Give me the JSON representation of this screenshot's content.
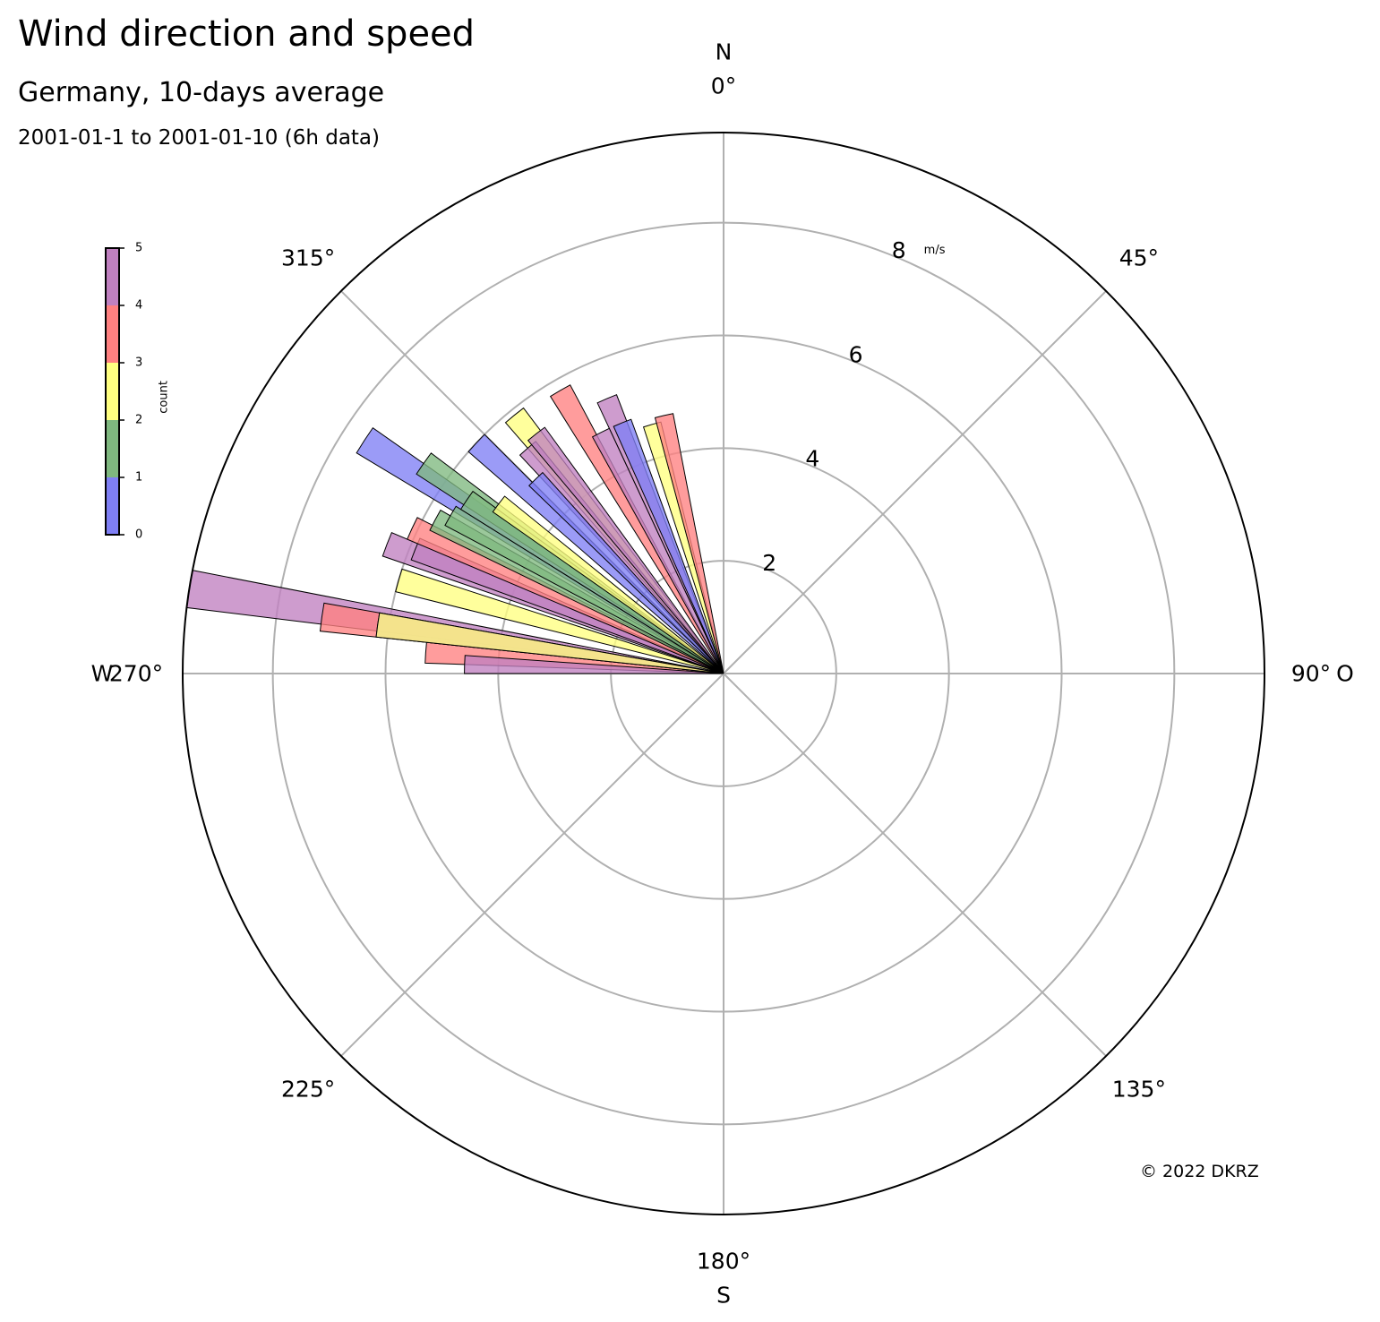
{
  "title": "Wind direction and speed",
  "subtitle": "Germany, 10-days average",
  "date_range": "2001-01-1 to 2001-01-10 (6h data)",
  "copyright": "© 2022 DKRZ",
  "chart_data": {
    "type": "polar-bar",
    "radial_unit": "m/s",
    "rmax": 9.6,
    "radial_ticks": [
      "2",
      "4",
      "6",
      "8"
    ],
    "radial_tick_values": [
      2,
      4,
      6,
      8
    ],
    "radial_tick_angle_deg": 22.5,
    "theta_zero": "N",
    "theta_direction": "clockwise",
    "angle_ticks": [
      "0°",
      "45°",
      "90°",
      "135°",
      "180°",
      "225°",
      "270°",
      "315°"
    ],
    "angle_tick_values": [
      0,
      45,
      90,
      135,
      180,
      225,
      270,
      315
    ],
    "compass_labels": [
      "N",
      "O",
      "S",
      "W"
    ],
    "compass_angles": [
      0,
      90,
      180,
      270
    ],
    "grid": true,
    "colorbar": {
      "label": "count",
      "ticks": [
        "0",
        "1",
        "2",
        "3",
        "4",
        "5"
      ],
      "colors": [
        "#7f7ff5",
        "#7fb87f",
        "#ffff80",
        "#ff8080",
        "#c080c0"
      ]
    },
    "bar_width_deg": 4,
    "bars": [
      {
        "direction": 286,
        "speed": 6.0,
        "count_bin": 2
      },
      {
        "direction": 274,
        "speed": 5.3,
        "count_bin": 3
      },
      {
        "direction": 272,
        "speed": 4.6,
        "count_bin": 4
      },
      {
        "direction": 279,
        "speed": 9.6,
        "count_bin": 4
      },
      {
        "direction": 278,
        "speed": 7.2,
        "count_bin": 3
      },
      {
        "direction": 278,
        "speed": 6.2,
        "count_bin": 4
      },
      {
        "direction": 278,
        "speed": 6.2,
        "count_bin": 2
      },
      {
        "direction": 291,
        "speed": 6.4,
        "count_bin": 4
      },
      {
        "direction": 292,
        "speed": 5.9,
        "count_bin": 4
      },
      {
        "direction": 295,
        "speed": 6.1,
        "count_bin": 3
      },
      {
        "direction": 298,
        "speed": 5.8,
        "count_bin": 1
      },
      {
        "direction": 303,
        "speed": 7.6,
        "count_bin": 0
      },
      {
        "direction": 305,
        "speed": 6.5,
        "count_bin": 1
      },
      {
        "direction": 300,
        "speed": 5.6,
        "count_bin": 1
      },
      {
        "direction": 304,
        "speed": 5.5,
        "count_bin": 1
      },
      {
        "direction": 307,
        "speed": 5.0,
        "count_bin": 2
      },
      {
        "direction": 313,
        "speed": 6.0,
        "count_bin": 0
      },
      {
        "direction": 321,
        "speed": 5.9,
        "count_bin": 2
      },
      {
        "direction": 319,
        "speed": 5.3,
        "count_bin": 4
      },
      {
        "direction": 316,
        "speed": 4.8,
        "count_bin": 0
      },
      {
        "direction": 322,
        "speed": 5.4,
        "count_bin": 4
      },
      {
        "direction": 330,
        "speed": 5.8,
        "count_bin": 3
      },
      {
        "direction": 337,
        "speed": 5.3,
        "count_bin": 4
      },
      {
        "direction": 333,
        "speed": 4.8,
        "count_bin": 4
      },
      {
        "direction": 338,
        "speed": 4.8,
        "count_bin": 0
      },
      {
        "direction": 344,
        "speed": 4.6,
        "count_bin": 2
      },
      {
        "direction": 347,
        "speed": 4.7,
        "count_bin": 3
      }
    ]
  }
}
